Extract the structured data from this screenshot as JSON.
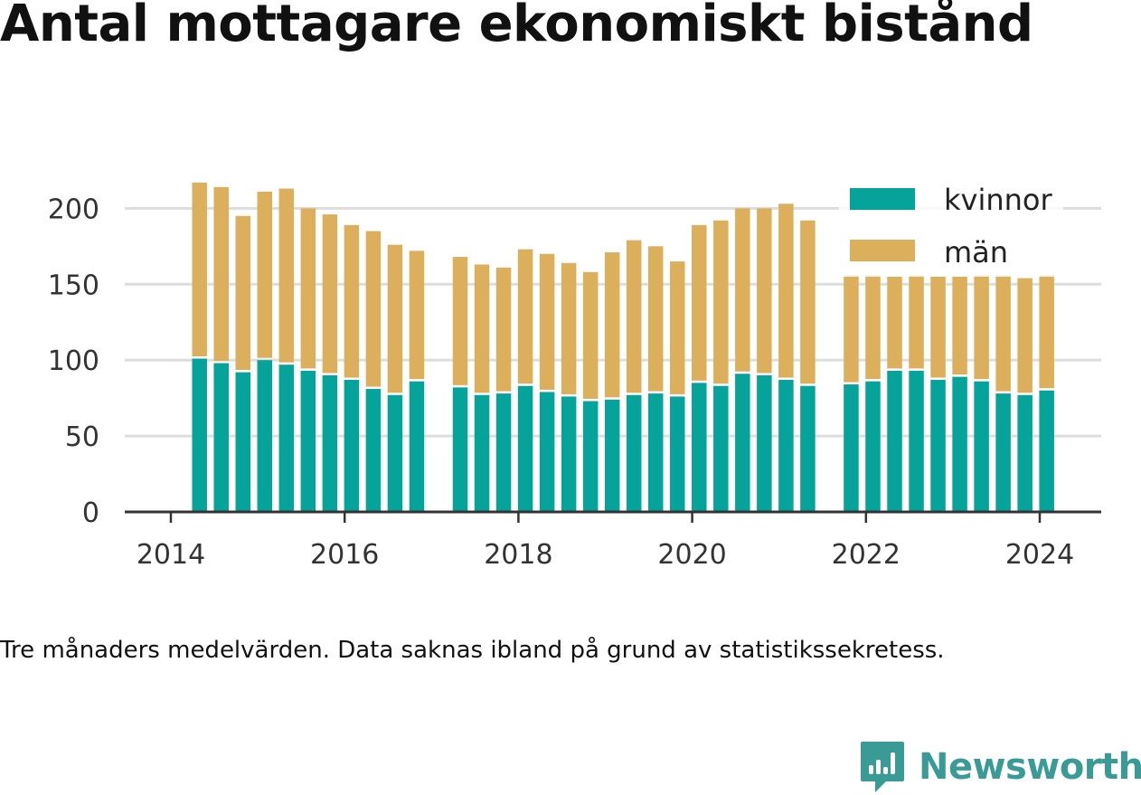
{
  "chart_data": {
    "type": "bar",
    "stacked": true,
    "title": "Antal mottagare ekonomiskt bistånd",
    "caption": "Tre månaders medelvärden. Data saknas ibland på grund av statistikssekretess.",
    "ylim": [
      0,
      230
    ],
    "y_ticks": [
      0,
      50,
      100,
      150,
      200
    ],
    "x_ticks": [
      {
        "label": "2014",
        "value": 2014
      },
      {
        "label": "2016",
        "value": 2016
      },
      {
        "label": "2018",
        "value": 2018
      },
      {
        "label": "2020",
        "value": 2020
      },
      {
        "label": "2022",
        "value": 2022
      },
      {
        "label": "2024",
        "value": 2024
      }
    ],
    "xlim": [
      2013.5,
      2024.7
    ],
    "grid": true,
    "legend_position": "top-right",
    "colors": {
      "kvinnor": "#05a399",
      "man": "#dcaf5c",
      "axis": "#333333",
      "grid": "#dddddd"
    },
    "x": [
      2014.33,
      2014.58,
      2014.83,
      2015.08,
      2015.33,
      2015.58,
      2015.83,
      2016.08,
      2016.33,
      2016.58,
      2016.83,
      2017.33,
      2017.58,
      2017.83,
      2018.08,
      2018.33,
      2018.58,
      2018.83,
      2019.08,
      2019.33,
      2019.58,
      2019.83,
      2020.08,
      2020.33,
      2020.58,
      2020.83,
      2021.08,
      2021.33,
      2021.83,
      2022.08,
      2022.33,
      2022.58,
      2022.83,
      2023.08,
      2023.33,
      2023.58,
      2023.83,
      2024.08
    ],
    "series": [
      {
        "name": "kvinnor",
        "values": [
          101,
          98,
          92,
          100,
          97,
          93,
          90,
          87,
          81,
          77,
          86,
          82,
          77,
          78,
          83,
          79,
          76,
          73,
          74,
          77,
          78,
          76,
          85,
          83,
          91,
          90,
          87,
          83,
          84,
          86,
          93,
          93,
          87,
          89,
          86,
          78,
          77,
          80
        ]
      },
      {
        "name": "män",
        "values": [
          116,
          116,
          103,
          111,
          116,
          107,
          106,
          102,
          104,
          99,
          86,
          86,
          86,
          83,
          90,
          91,
          88,
          85,
          97,
          102,
          97,
          89,
          104,
          109,
          109,
          110,
          116,
          109,
          72,
          70,
          62,
          63,
          68,
          66,
          70,
          78,
          77,
          76
        ]
      }
    ]
  },
  "logo": {
    "name": "Newsworthy"
  }
}
